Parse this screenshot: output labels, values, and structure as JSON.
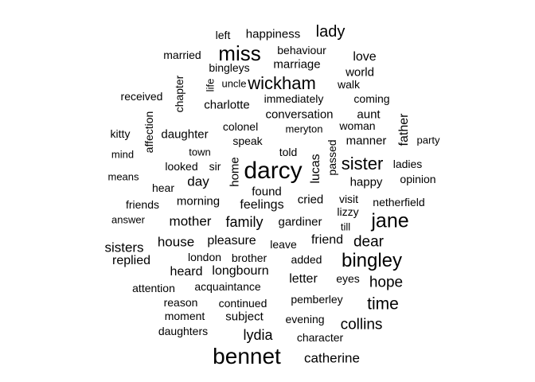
{
  "words": [
    {
      "text": "darcy",
      "weight": 100,
      "vertical": false
    },
    {
      "text": "bennet",
      "weight": 86,
      "vertical": false
    },
    {
      "text": "miss",
      "weight": 76,
      "vertical": false
    },
    {
      "text": "jane",
      "weight": 74,
      "vertical": false
    },
    {
      "text": "bingley",
      "weight": 72,
      "vertical": false
    },
    {
      "text": "sister",
      "weight": 64,
      "vertical": false
    },
    {
      "text": "wickham",
      "weight": 64,
      "vertical": false
    },
    {
      "text": "time",
      "weight": 62,
      "vertical": false
    },
    {
      "text": "lady",
      "weight": 58,
      "vertical": false
    },
    {
      "text": "dear",
      "weight": 55,
      "vertical": false
    },
    {
      "text": "collins",
      "weight": 54,
      "vertical": false
    },
    {
      "text": "hope",
      "weight": 54,
      "vertical": false
    },
    {
      "text": "lydia",
      "weight": 52,
      "vertical": false
    },
    {
      "text": "family",
      "weight": 52,
      "vertical": false
    },
    {
      "text": "mother",
      "weight": 50,
      "vertical": false
    },
    {
      "text": "day",
      "weight": 50,
      "vertical": false
    },
    {
      "text": "sisters",
      "weight": 50,
      "vertical": false
    },
    {
      "text": "house",
      "weight": 50,
      "vertical": false
    },
    {
      "text": "catherine",
      "weight": 50,
      "vertical": false
    },
    {
      "text": "friend",
      "weight": 48,
      "vertical": false
    },
    {
      "text": "replied",
      "weight": 48,
      "vertical": false
    },
    {
      "text": "pleasure",
      "weight": 48,
      "vertical": false
    },
    {
      "text": "father",
      "weight": 48,
      "vertical": true
    },
    {
      "text": "heard",
      "weight": 46,
      "vertical": false
    },
    {
      "text": "letter",
      "weight": 46,
      "vertical": false
    },
    {
      "text": "love",
      "weight": 46,
      "vertical": false
    },
    {
      "text": "longbourn",
      "weight": 46,
      "vertical": false
    },
    {
      "text": "lucas",
      "weight": 46,
      "vertical": true
    },
    {
      "text": "feelings",
      "weight": 46,
      "vertical": false
    },
    {
      "text": "aunt",
      "weight": 44,
      "vertical": false
    },
    {
      "text": "manner",
      "weight": 44,
      "vertical": false
    },
    {
      "text": "conversation",
      "weight": 44,
      "vertical": false
    },
    {
      "text": "cried",
      "weight": 44,
      "vertical": false
    },
    {
      "text": "daughter",
      "weight": 44,
      "vertical": false
    },
    {
      "text": "marriage",
      "weight": 44,
      "vertical": false
    },
    {
      "text": "happiness",
      "weight": 44,
      "vertical": false
    },
    {
      "text": "charlotte",
      "weight": 44,
      "vertical": false
    },
    {
      "text": "home",
      "weight": 44,
      "vertical": true
    },
    {
      "text": "gardiner",
      "weight": 44,
      "vertical": false
    },
    {
      "text": "subject",
      "weight": 44,
      "vertical": false
    },
    {
      "text": "world",
      "weight": 44,
      "vertical": false
    },
    {
      "text": "happy",
      "weight": 44,
      "vertical": false
    },
    {
      "text": "morning",
      "weight": 44,
      "vertical": false
    },
    {
      "text": "found",
      "weight": 44,
      "vertical": false
    },
    {
      "text": "immediately",
      "weight": 42,
      "vertical": false
    },
    {
      "text": "added",
      "weight": 42,
      "vertical": false
    },
    {
      "text": "coming",
      "weight": 42,
      "vertical": false
    },
    {
      "text": "netherfield",
      "weight": 42,
      "vertical": false
    },
    {
      "text": "brother",
      "weight": 42,
      "vertical": false
    },
    {
      "text": "speak",
      "weight": 42,
      "vertical": false
    },
    {
      "text": "ladies",
      "weight": 42,
      "vertical": false
    },
    {
      "text": "opinion",
      "weight": 42,
      "vertical": false
    },
    {
      "text": "eyes",
      "weight": 42,
      "vertical": false
    },
    {
      "text": "chapter",
      "weight": 42,
      "vertical": true
    },
    {
      "text": "pemberley",
      "weight": 42,
      "vertical": false
    },
    {
      "text": "evening",
      "weight": 42,
      "vertical": false
    },
    {
      "text": "leave",
      "weight": 42,
      "vertical": false
    },
    {
      "text": "told",
      "weight": 42,
      "vertical": false
    },
    {
      "text": "colonel",
      "weight": 42,
      "vertical": false
    },
    {
      "text": "lizzy",
      "weight": 42,
      "vertical": false
    },
    {
      "text": "continued",
      "weight": 40,
      "vertical": false
    },
    {
      "text": "received",
      "weight": 40,
      "vertical": false
    },
    {
      "text": "behaviour",
      "weight": 40,
      "vertical": false
    },
    {
      "text": "bingleys",
      "weight": 40,
      "vertical": false
    },
    {
      "text": "acquaintance",
      "weight": 40,
      "vertical": false
    },
    {
      "text": "moment",
      "weight": 40,
      "vertical": false
    },
    {
      "text": "looked",
      "weight": 40,
      "vertical": false
    },
    {
      "text": "reason",
      "weight": 40,
      "vertical": false
    },
    {
      "text": "married",
      "weight": 40,
      "vertical": false
    },
    {
      "text": "hear",
      "weight": 40,
      "vertical": false
    },
    {
      "text": "character",
      "weight": 40,
      "vertical": false
    },
    {
      "text": "left",
      "weight": 40,
      "vertical": false
    },
    {
      "text": "daughters",
      "weight": 40,
      "vertical": false
    },
    {
      "text": "attention",
      "weight": 40,
      "vertical": false
    },
    {
      "text": "london",
      "weight": 40,
      "vertical": false
    },
    {
      "text": "sir",
      "weight": 40,
      "vertical": false
    },
    {
      "text": "walk",
      "weight": 40,
      "vertical": false
    },
    {
      "text": "kitty",
      "weight": 40,
      "vertical": false
    },
    {
      "text": "affection",
      "weight": 40,
      "vertical": true
    },
    {
      "text": "woman",
      "weight": 40,
      "vertical": false
    },
    {
      "text": "friends",
      "weight": 40,
      "vertical": false
    },
    {
      "text": "visit",
      "weight": 40,
      "vertical": false
    },
    {
      "text": "passed",
      "weight": 40,
      "vertical": true
    },
    {
      "text": "uncle",
      "weight": 38,
      "vertical": false
    },
    {
      "text": "town",
      "weight": 38,
      "vertical": false
    },
    {
      "text": "meryton",
      "weight": 38,
      "vertical": false
    },
    {
      "text": "means",
      "weight": 38,
      "vertical": false
    },
    {
      "text": "answer",
      "weight": 38,
      "vertical": false
    },
    {
      "text": "mind",
      "weight": 38,
      "vertical": false
    },
    {
      "text": "party",
      "weight": 38,
      "vertical": false
    },
    {
      "text": "till",
      "weight": 38,
      "vertical": false
    },
    {
      "text": "life",
      "weight": 38,
      "vertical": true
    }
  ]
}
